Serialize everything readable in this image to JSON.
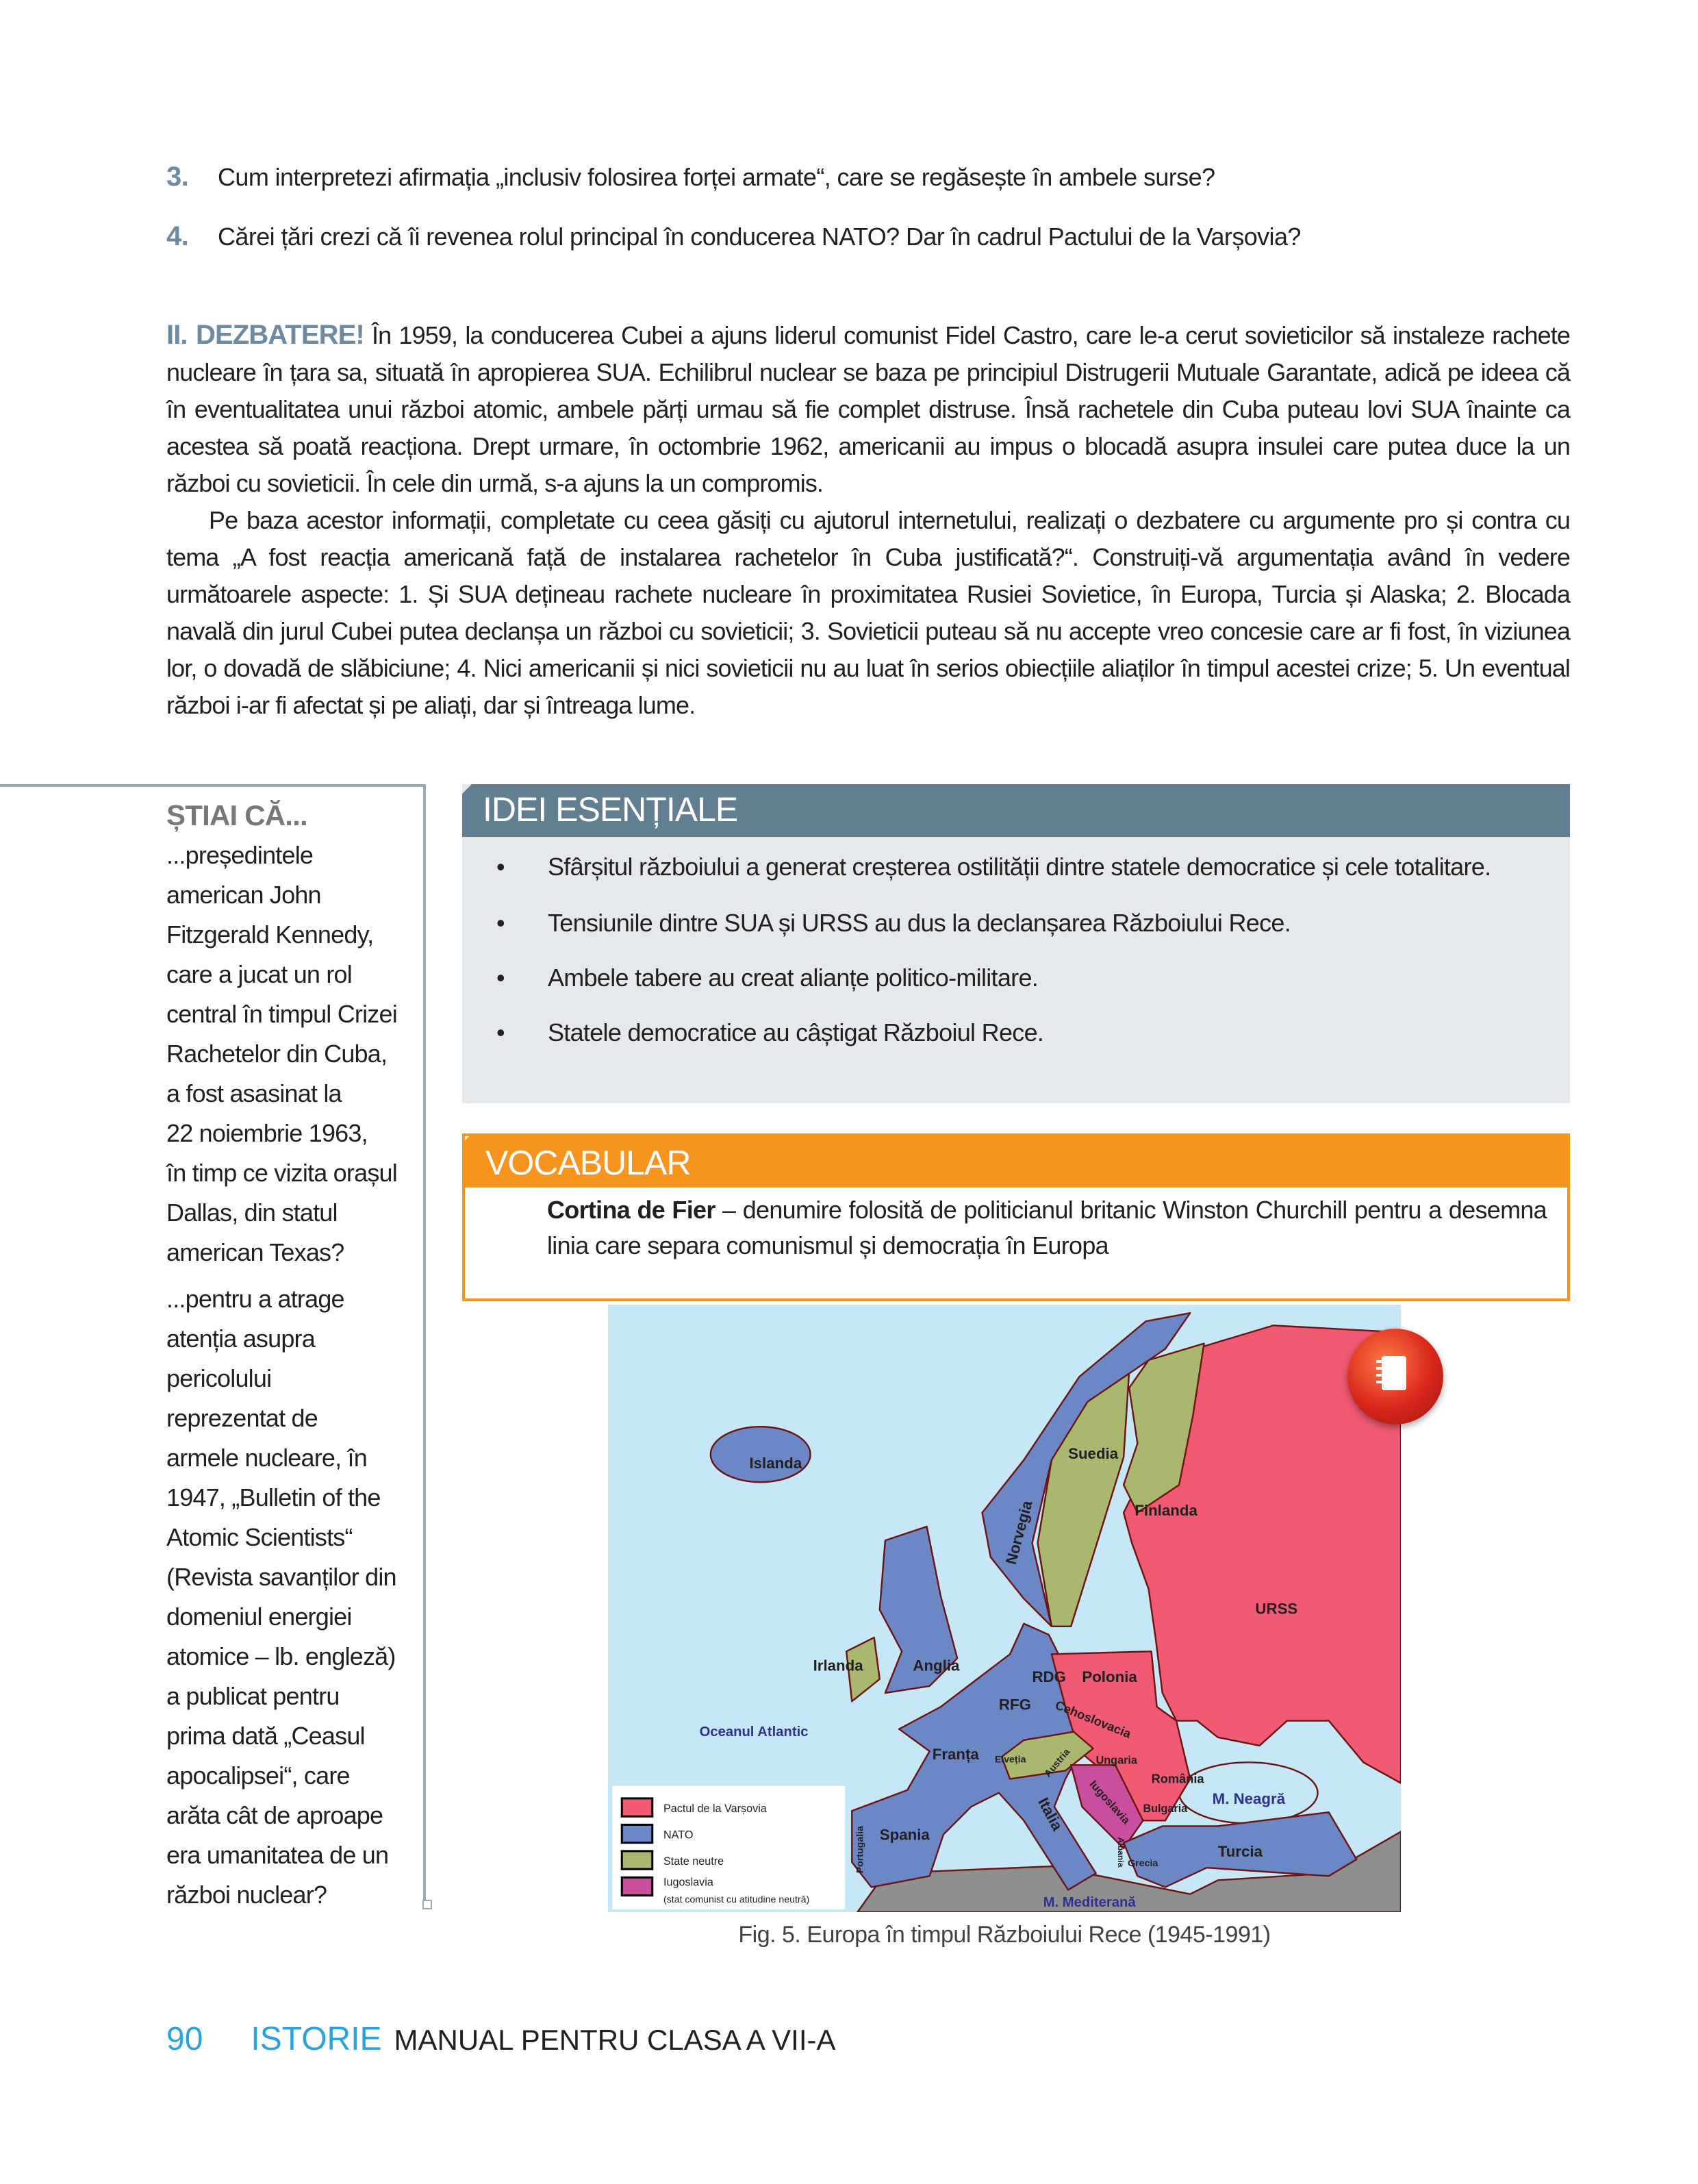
{
  "questions": [
    {
      "number": "3.",
      "text": "Cum interpretezi afirmația „inclusiv folosirea forței armate“, care se regăsește în ambele surse?"
    },
    {
      "number": "4.",
      "text": "Cărei țări crezi că îi revenea rolul principal în conducerea NATO? Dar în cadrul Pactului de la Varșovia?"
    }
  ],
  "debate": {
    "label": "II. DEZBATERE!",
    "paragraph1": "În 1959, la conducerea Cubei a ajuns liderul comunist Fidel Castro, care le-a cerut sovieticilor să instaleze rachete nucleare în țara sa, situată în apropierea SUA. Echilibrul nuclear se baza pe principiul Distrugerii Mutuale Garantate, adică pe ideea că în eventualitatea unui război atomic, ambele părți urmau să fie complet distruse. Însă rachetele din Cuba puteau lovi SUA înainte ca acestea să poată reacționa. Drept urmare, în octombrie 1962, americanii au impus o blocadă asupra insulei care putea duce la un război cu sovieticii. În cele din urmă, s-a ajuns la un compromis.",
    "paragraph2": "Pe baza acestor informații, completate cu ceea găsiți cu ajutorul internetului, realizați o dezbatere cu argumente pro și contra cu tema „A fost reacția americană față de instalarea rachetelor în Cuba justificată?“. Construiți-vă argumentația având în vedere următoarele aspecte: 1. Și SUA dețineau rachete nucleare în proximitatea Rusiei Sovietice, în Europa, Turcia și Alaska; 2. Blocada navală din jurul Cubei putea declanșa un război cu sovieticii; 3. Sovieticii puteau să nu accepte vreo concesie care ar fi fost, în viziunea lor, o dovadă de slăbiciune; 4. Nici americanii și nici sovieticii nu au luat în serios obiecțiile aliaților în timpul acestei crize; 5. Un eventual război i-ar fi afectat și pe aliați, dar și întreaga lume."
  },
  "sidebar": {
    "title": "ȘTIAI CĂ...",
    "fact1_lines": [
      "...președintele",
      "american John",
      "Fitzgerald Kennedy,",
      "care a jucat un rol",
      "central în timpul Crizei",
      "Rachetelor din Cuba,",
      "a fost asasinat la",
      "22 noiembrie 1963,",
      "în timp ce vizita orașul",
      "Dallas, din statul",
      "american Texas?"
    ],
    "fact2_lines": [
      "...pentru a atrage",
      "atenția asupra",
      "pericolului",
      "reprezentat de",
      "armele nucleare, în",
      "1947, „Bulletin of the",
      "Atomic Scientists“",
      "(Revista savanților din",
      "domeniul energiei",
      "atomice – lb. engleză)",
      "a publicat pentru",
      "prima dată „Ceasul",
      "apocalipsei“, care",
      "arăta cât de aproape",
      "era umanitatea de un",
      "război nuclear?"
    ]
  },
  "key_ideas": {
    "title": "IDEI ESENȚIALE",
    "bullet": "•",
    "items": [
      "Sfârșitul războiului a generat creșterea ostilității dintre statele democratice și cele totalitare.",
      "Tensiunile dintre SUA și URSS au dus la declanșarea Războiului Rece.",
      "Ambele tabere au creat alianțe politico-militare.",
      "Statele democratice au câștigat Războiul Rece."
    ]
  },
  "vocabulary": {
    "title": "VOCABULAR",
    "term": "Cortina de Fier",
    "definition": " – denumire folosită de politicianul britanic Winston Churchill pentru a desemna linia care separa comunismul și democrația în Europa"
  },
  "map": {
    "colors": {
      "warsaw": "#f05a72",
      "nato": "#6b87c6",
      "neutral": "#a9b86e",
      "yugoslavia": "#c94f9e",
      "sea": "#c6e7f6",
      "other": "#8f8f8f",
      "border": "#6b1414"
    },
    "labels": {
      "islanda": "Islanda",
      "suedia": "Suedia",
      "finlanda": "Finlanda",
      "norvegia": "Norvegia",
      "urss": "URSS",
      "irlanda": "Irlanda",
      "anglia": "Anglia",
      "rdg": "RDG",
      "polonia": "Polonia",
      "rfg": "RFG",
      "cehoslovacia": "Cehoslovacia",
      "franta": "Franța",
      "elvetia": "Elveția",
      "austria": "Austria",
      "ungaria": "Ungaria",
      "romania": "România",
      "iugoslavia": "Iugoslavia",
      "bulgaria": "Bulgaria",
      "italia": "Italia",
      "spania": "Spania",
      "portugalia": "Portugalia",
      "grecia": "Grecia",
      "albania": "Albania",
      "turcia": "Turcia"
    },
    "seas": {
      "atlantic": "Oceanul Atlantic",
      "black": "M. Neagră",
      "med": "M. Mediterană"
    },
    "legend": [
      {
        "label": "Pactul de la Varșovia",
        "color": "#f05a72"
      },
      {
        "label": "NATO",
        "color": "#6b87c6"
      },
      {
        "label": "State neutre",
        "color": "#a9b86e"
      },
      {
        "label": "Iugoslavia",
        "sublabel": "(stat comunist cu atitudine neutră)",
        "color": "#c94f9e"
      }
    ],
    "caption": "Fig. 5. Europa în timpul Războiului Rece (1945-1991)",
    "icon": "notebook-icon"
  },
  "footer": {
    "page_number": "90",
    "subject": "ISTORIE",
    "book": "MANUAL PENTRU CLASA A VII-A"
  }
}
